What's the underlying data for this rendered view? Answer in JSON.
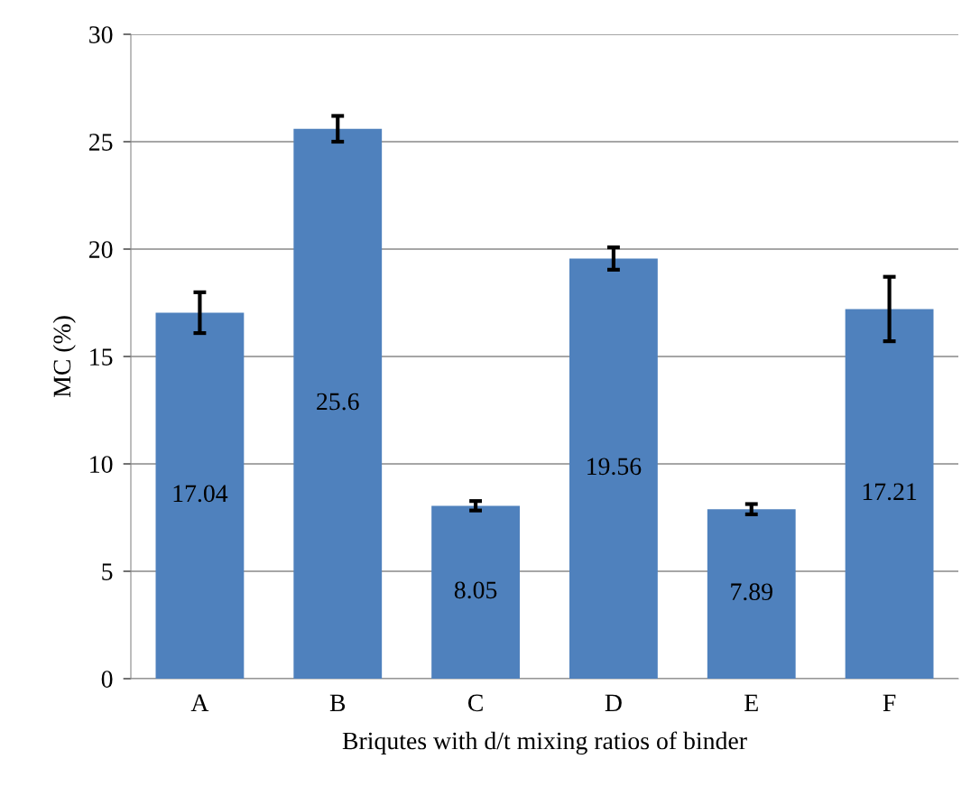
{
  "chart_data": {
    "type": "bar",
    "xlabel": "Briqutes with d/t mixing ratios of binder",
    "ylabel": "MC (%)",
    "categories": [
      "A",
      "B",
      "C",
      "D",
      "E",
      "F"
    ],
    "values": [
      17.04,
      25.6,
      8.05,
      19.56,
      7.89,
      17.21
    ],
    "errors": [
      0.95,
      0.6,
      0.22,
      0.52,
      0.24,
      1.5
    ],
    "color": "#4f81bd",
    "data_labels": true,
    "ylim": [
      0,
      30
    ],
    "yticks": [
      0,
      5,
      10,
      15,
      20,
      25,
      30
    ],
    "grid": "y",
    "legend": false
  }
}
